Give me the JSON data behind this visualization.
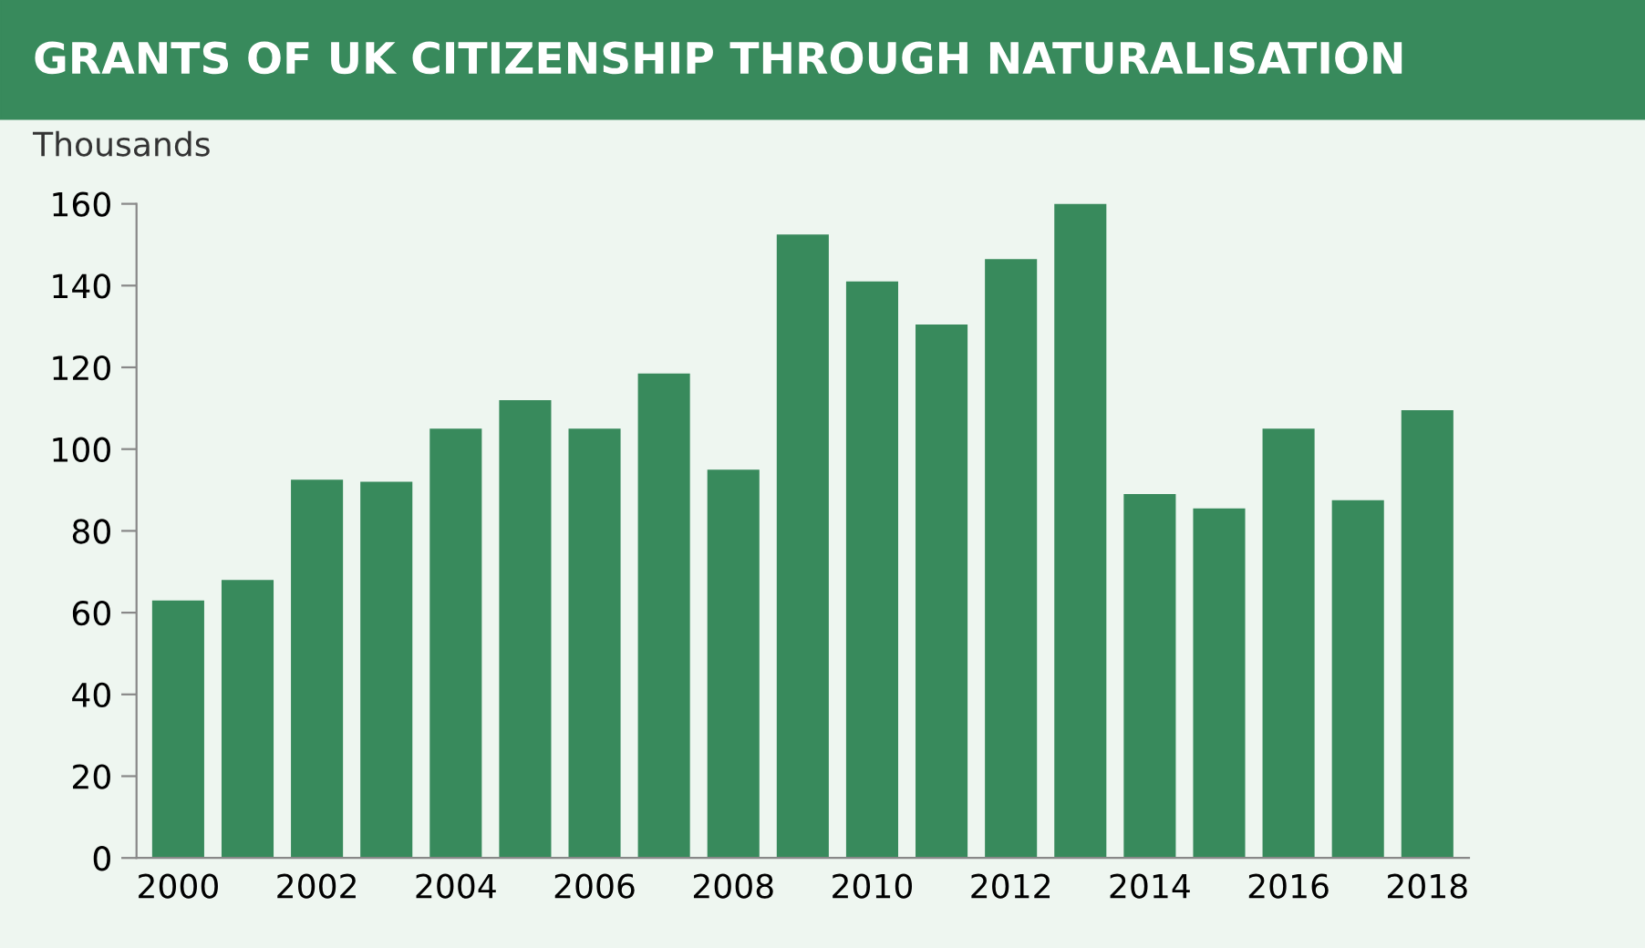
{
  "chart_data": {
    "type": "bar",
    "title": "GRANTS OF UK CITIZENSHIP THROUGH NATURALISATION",
    "ylabel": "Thousands",
    "categories": [
      "2000",
      null,
      "2002",
      null,
      "2004",
      null,
      "2006",
      null,
      "2008",
      null,
      "2010",
      null,
      "2012",
      null,
      "2014",
      null,
      "2016",
      null,
      "2018"
    ],
    "values": [
      63,
      68,
      92.5,
      92,
      105,
      112,
      105,
      118.5,
      95,
      152.5,
      141,
      130.5,
      146.5,
      160,
      89,
      85.5,
      105,
      87.5,
      109.5
    ],
    "color": "#388a5c",
    "ylim": [
      0,
      160
    ],
    "yticks": [
      0,
      20,
      40,
      60,
      80,
      100,
      120,
      140,
      160
    ],
    "grid": false
  }
}
